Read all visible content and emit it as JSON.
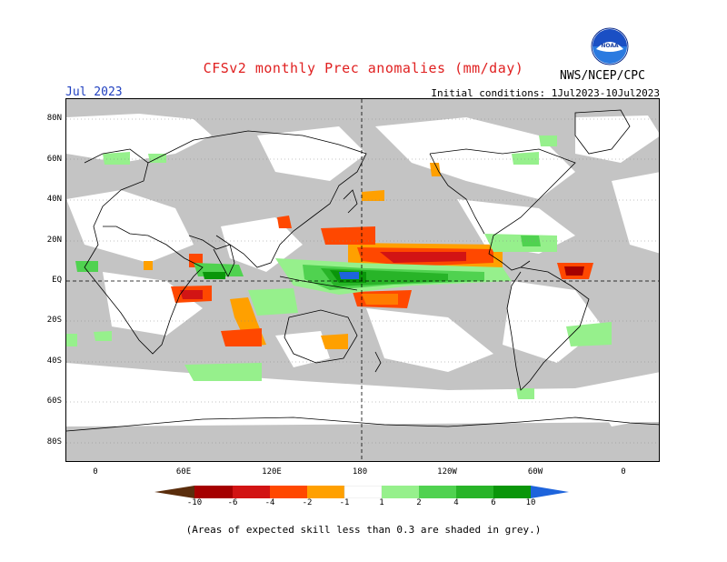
{
  "header": {
    "title": "CFSv2 monthly Prec anomalies (mm/day)",
    "month": "Jul 2023",
    "initial_conditions": "Initial conditions: 1Jul2023-10Jul2023",
    "agency": "NWS/NCEP/CPC",
    "logo_text": "NOAA"
  },
  "axes": {
    "lat_labels": [
      "80N",
      "60N",
      "40N",
      "20N",
      "EQ",
      "20S",
      "40S",
      "60S",
      "80S"
    ],
    "lon_labels": [
      "0",
      "60E",
      "120E",
      "180",
      "120W",
      "60W",
      "0"
    ]
  },
  "colorbar": {
    "labels": [
      "-10",
      "-6",
      "-4",
      "-2",
      "-1",
      "1",
      "2",
      "4",
      "6",
      "10"
    ],
    "colors": [
      "#5a2d0c",
      "#a50000",
      "#d21414",
      "#ff4800",
      "#ffa000",
      "#ffffff",
      "#96f08c",
      "#50d250",
      "#28b428",
      "#0a960a",
      "#1e64dc"
    ]
  },
  "footnote": "(Areas of expected skill less than 0.3 are shaded in grey.)"
}
